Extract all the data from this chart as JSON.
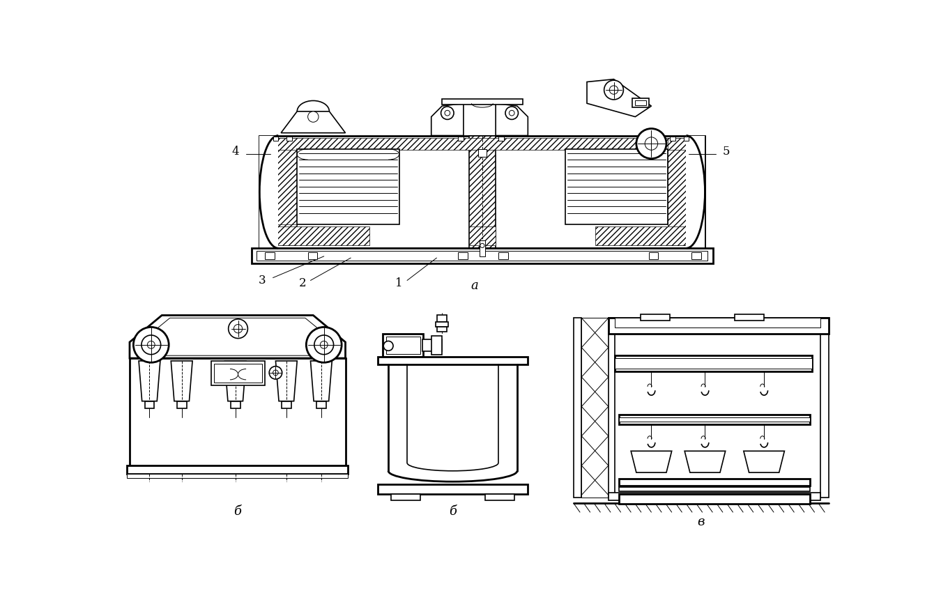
{
  "bg_color": "#ffffff",
  "line_color": "#000000",
  "fig_width": 13.5,
  "fig_height": 8.51,
  "labels": {
    "a": "а",
    "b": "б",
    "v": "в",
    "1": "1",
    "2": "2",
    "3": "3",
    "4": "4",
    "5": "5"
  }
}
